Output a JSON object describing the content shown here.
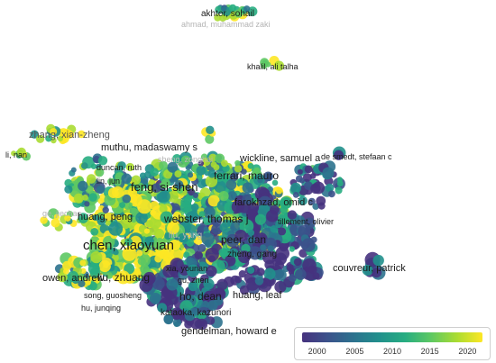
{
  "labels": [
    {
      "text": "akhter, sohail"
    },
    {
      "text": "ahmad, muhammad zaki"
    },
    {
      "text": "khalil, ali talha"
    },
    {
      "text": "zhang, xian-zheng"
    },
    {
      "text": "li, nan"
    },
    {
      "text": "muthu, madaswamy s"
    },
    {
      "text": "wickline, samuel a"
    },
    {
      "text": "de smedt, stefaan c"
    },
    {
      "text": "duncan, ruth"
    },
    {
      "text": "sheng, zonghai"
    },
    {
      "text": "ferrari, mauro"
    },
    {
      "text": "lin, jun"
    },
    {
      "text": "feng, si-shen"
    },
    {
      "text": "farokhzad, omid c"
    },
    {
      "text": "ge, jiechao"
    },
    {
      "text": "huang, peng"
    },
    {
      "text": "webster, thomas j"
    },
    {
      "text": "tillement, olivier"
    },
    {
      "text": "chen, xiaoyuan"
    },
    {
      "text": "liu, yang"
    },
    {
      "text": "peer, dan"
    },
    {
      "text": "zheng, gang"
    },
    {
      "text": "couvreur, patrick"
    },
    {
      "text": "owen, andrew"
    },
    {
      "text": "liu, zhuang"
    },
    {
      "text": "xia, younan"
    },
    {
      "text": "gu, zhen"
    },
    {
      "text": "song, guosheng"
    },
    {
      "text": "ho, dean"
    },
    {
      "text": "huang, leaf"
    },
    {
      "text": "hu, junqing"
    },
    {
      "text": "kataoka, kazunori"
    },
    {
      "text": "gendelman, howard e"
    }
  ],
  "legend": {
    "ticks": [
      "2000",
      "2005",
      "2010",
      "2015",
      "2020"
    ],
    "year_min": 1998,
    "year_max": 2022,
    "colors": [
      "#46327e",
      "#3b528b",
      "#2c728e",
      "#21908c",
      "#27ad81",
      "#5dc863",
      "#aadc32",
      "#fde725"
    ]
  }
}
